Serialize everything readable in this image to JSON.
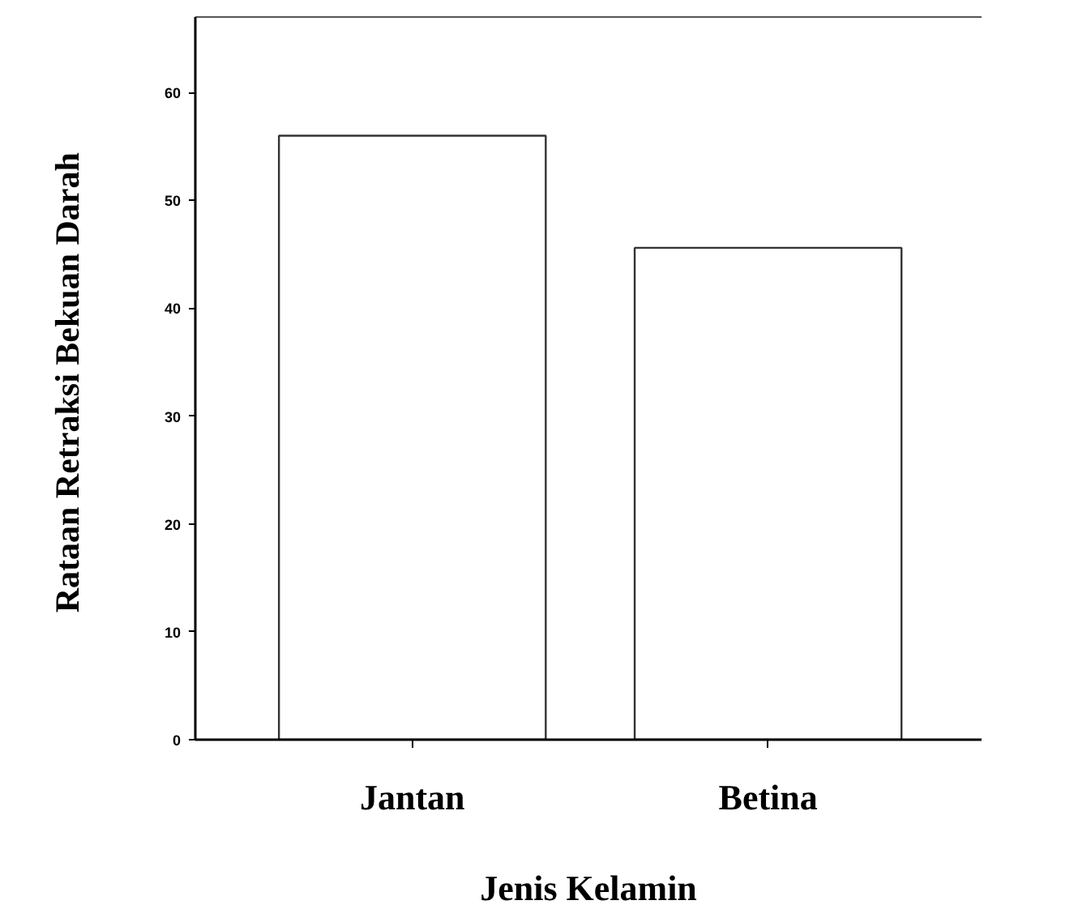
{
  "chart_data": {
    "type": "bar",
    "categories": [
      "Jantan",
      "Betina"
    ],
    "values": [
      56,
      45.6
    ],
    "color": "#ffffff",
    "xlabel": "Jenis Kelamin",
    "ylabel": "Rataan  Retraksi Bekuan Darah",
    "ylim": [
      0,
      67
    ],
    "yticks": [
      0,
      10,
      20,
      30,
      40,
      50,
      60
    ],
    "grid": false
  }
}
